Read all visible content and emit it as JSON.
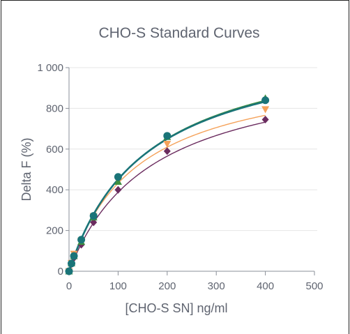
{
  "chart_data": {
    "type": "scatter",
    "title": "CHO-S Standard Curves",
    "xlabel": "[CHO-S SN] ng/ml",
    "ylabel": "Delta F  (%)",
    "xlim": [
      0,
      500
    ],
    "ylim": [
      0,
      1000
    ],
    "xticks": [
      0,
      100,
      200,
      300,
      400,
      500
    ],
    "xtick_labels": [
      "0",
      "100",
      "200",
      "300",
      "400",
      "500"
    ],
    "yticks": [
      0,
      200,
      400,
      600,
      800,
      1000
    ],
    "ytick_labels": [
      "0",
      "200",
      "400",
      "600",
      "800",
      "1 000"
    ],
    "grid": "horizontal",
    "legend": "none",
    "x": [
      0,
      5,
      10,
      25,
      50,
      100,
      200,
      400
    ],
    "series": [
      {
        "color": "#f5a25a",
        "marker": "triangle-down",
        "values": [
          0,
          40,
          85,
          150,
          270,
          445,
          625,
          795
        ],
        "fit": {
          "ymax": 1030,
          "k": 138
        }
      },
      {
        "color": "#6b2c5f",
        "marker": "diamond",
        "values": [
          0,
          35,
          65,
          130,
          240,
          400,
          590,
          745
        ],
        "fit": {
          "ymax": 1040,
          "k": 168
        }
      },
      {
        "color": "#3f8f3f",
        "marker": "triangle-up",
        "values": [
          0,
          40,
          75,
          145,
          265,
          440,
          660,
          850
        ],
        "fit": {
          "ymax": 1175,
          "k": 160
        }
      },
      {
        "color": "#1a7478",
        "marker": "circle",
        "values": [
          0,
          38,
          75,
          155,
          272,
          463,
          665,
          840
        ],
        "fit": {
          "ymax": 1160,
          "k": 157
        }
      }
    ]
  }
}
